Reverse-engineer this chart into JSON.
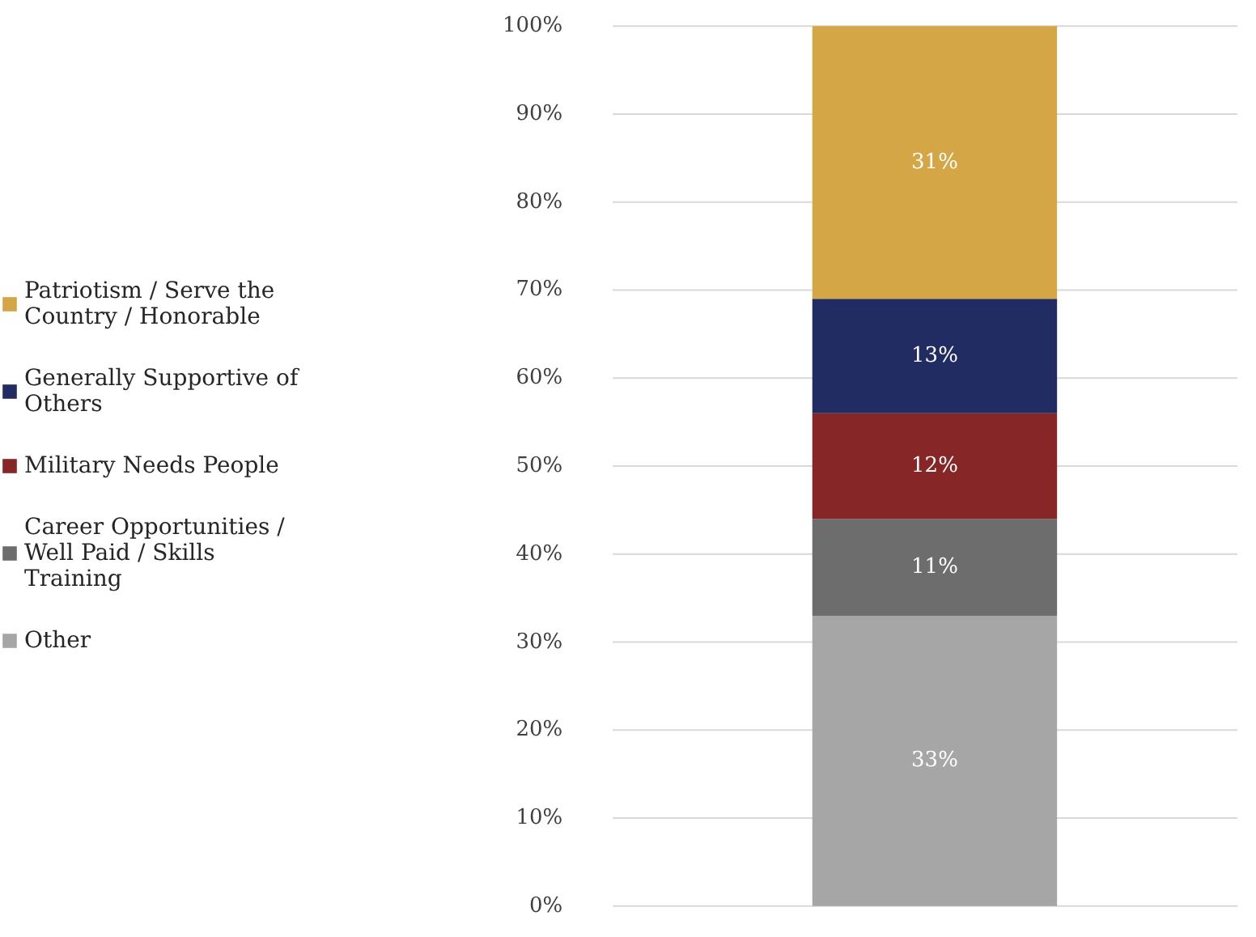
{
  "chart_data": {
    "type": "bar",
    "stacked": true,
    "categories": [
      null
    ],
    "series": [
      {
        "name": "Other",
        "color": "#a5a6a5",
        "values": [
          33
        ],
        "value_labels": [
          "33%"
        ]
      },
      {
        "name": "Career Opportunities / Well Paid / Skills Training",
        "color": "#6d6d6d",
        "values": [
          11
        ],
        "value_labels": [
          "11%"
        ]
      },
      {
        "name": "Military Needs People",
        "color": "#872627",
        "values": [
          12
        ],
        "value_labels": [
          "12%"
        ]
      },
      {
        "name": "Generally Supportive of Others",
        "color": "#212c63",
        "values": [
          13
        ],
        "value_labels": [
          "13%"
        ]
      },
      {
        "name": "Patriotism / Serve the Country / Honorable",
        "color": "#d4a646",
        "values": [
          31
        ],
        "value_labels": [
          "31%"
        ]
      }
    ],
    "ylim": [
      0,
      100
    ],
    "yticks": [
      {
        "value": 0,
        "label": "0%"
      },
      {
        "value": 10,
        "label": "10%"
      },
      {
        "value": 20,
        "label": "20%"
      },
      {
        "value": 30,
        "label": "30%"
      },
      {
        "value": 40,
        "label": "40%"
      },
      {
        "value": 50,
        "label": "50%"
      },
      {
        "value": 60,
        "label": "60%"
      },
      {
        "value": 70,
        "label": "70%"
      },
      {
        "value": 80,
        "label": "80%"
      },
      {
        "value": 90,
        "label": "90%"
      },
      {
        "value": 100,
        "label": "100%"
      }
    ],
    "grid": "y",
    "legend": "left"
  }
}
